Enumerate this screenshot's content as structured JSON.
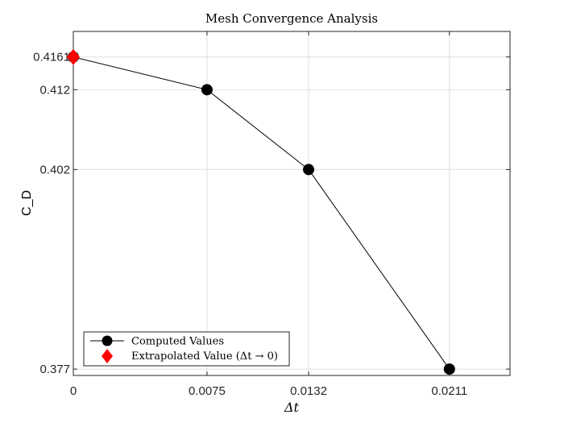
{
  "chart_data": {
    "type": "line",
    "title": "Mesh Convergence Analysis",
    "xlabel": "Δt",
    "ylabel": "C_D",
    "xlim": [
      0,
      0.0245
    ],
    "ylim": [
      0.3762,
      0.4193
    ],
    "x_ticks": [
      0,
      0.0075,
      0.0132,
      0.0211
    ],
    "x_tick_labels": [
      "0",
      "0.0075",
      "0.0132",
      "0.0211"
    ],
    "y_ticks": [
      0.377,
      0.402,
      0.412,
      0.4161
    ],
    "y_tick_labels": [
      "0.377",
      "0.402",
      "0.412",
      "0.4161"
    ],
    "grid": true,
    "legend_position": "bottom-left",
    "series": [
      {
        "name": "Computed Values",
        "marker": "circle",
        "color": "#000000",
        "x": [
          0,
          0.0075,
          0.0132,
          0.0211
        ],
        "y": [
          0.4161,
          0.412,
          0.402,
          0.377
        ]
      },
      {
        "name": "Extrapolated Value (Δt → 0)",
        "marker": "diamond",
        "color": "#ff0000",
        "x": [
          0
        ],
        "y": [
          0.4161
        ]
      }
    ]
  }
}
